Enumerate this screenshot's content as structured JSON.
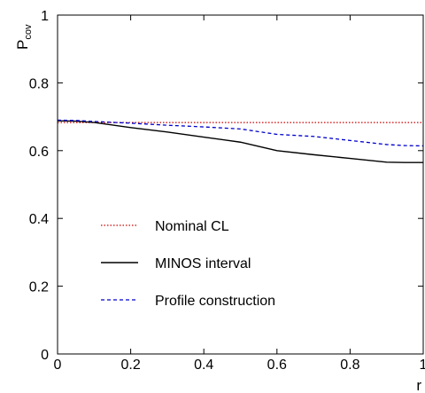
{
  "chart_data": {
    "type": "line",
    "xlabel": "r",
    "ylabel": "P",
    "ylabel_subscript": "cov",
    "xlim": [
      0,
      1
    ],
    "ylim": [
      0,
      1
    ],
    "x_ticks": [
      0,
      0.2,
      0.4,
      0.6,
      0.8,
      1
    ],
    "x_tick_labels": [
      "0",
      "0.2",
      "0.4",
      "0.6",
      "0.8",
      "1"
    ],
    "y_ticks": [
      0,
      0.2,
      0.4,
      0.6,
      0.8,
      1
    ],
    "y_tick_labels": [
      "0",
      "0.2",
      "0.4",
      "0.6",
      "0.8",
      "1"
    ],
    "grid": false,
    "legend_position": "lower-left",
    "series": [
      {
        "name": "Nominal CL",
        "color": "#cc0000",
        "style": "dotted",
        "x": [
          0,
          1
        ],
        "y": [
          0.683,
          0.683
        ]
      },
      {
        "name": "MINOS interval",
        "color": "#000000",
        "style": "solid",
        "x": [
          0.0,
          0.05,
          0.1,
          0.2,
          0.3,
          0.4,
          0.5,
          0.6,
          0.7,
          0.8,
          0.9,
          0.95,
          1.0
        ],
        "y": [
          0.688,
          0.687,
          0.683,
          0.668,
          0.655,
          0.64,
          0.625,
          0.6,
          0.588,
          0.577,
          0.566,
          0.565,
          0.565
        ]
      },
      {
        "name": "Profile construction",
        "color": "#0000cc",
        "style": "dashed",
        "x": [
          0.0,
          0.05,
          0.1,
          0.2,
          0.3,
          0.4,
          0.5,
          0.6,
          0.7,
          0.8,
          0.9,
          0.95,
          1.0
        ],
        "y": [
          0.69,
          0.689,
          0.686,
          0.681,
          0.675,
          0.67,
          0.664,
          0.648,
          0.642,
          0.63,
          0.618,
          0.615,
          0.614
        ]
      }
    ]
  }
}
